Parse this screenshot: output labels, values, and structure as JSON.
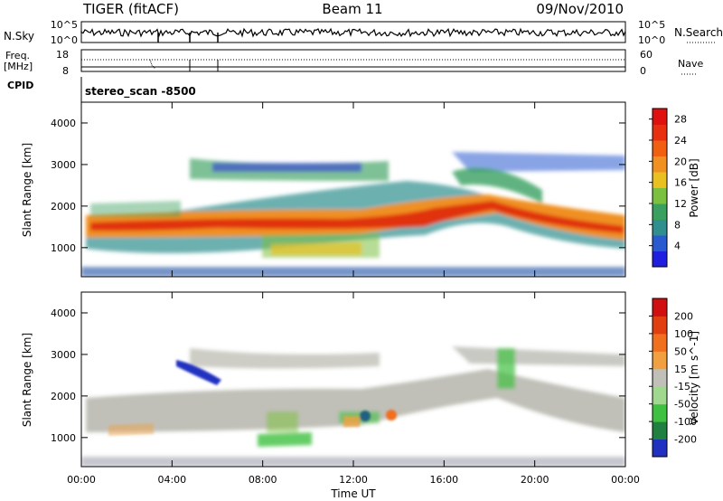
{
  "header": {
    "radar": "TIGER (fitACF)",
    "beam": "Beam 11",
    "date": "09/Nov/2010"
  },
  "panels": {
    "nsky_label": "N.Sky",
    "nsky_ticks": [
      "10^5",
      "10^0"
    ],
    "nsearch_label": "N.Search",
    "nsearch_ticks": [
      "10^5",
      "10^0"
    ],
    "freq_label_line1": "Freq.",
    "freq_label_line2": "[MHz]",
    "freq_ticks": [
      "18",
      "8"
    ],
    "nave_label": "Nave",
    "nave_ticks": [
      "60",
      "0"
    ],
    "cpid_label": "CPID",
    "cpid_text": "stereo_scan -8500"
  },
  "colors": {
    "power_scale": [
      "#1f1fe0",
      "#2a5ad0",
      "#2f8f8f",
      "#3aa060",
      "#7cc040",
      "#e8c020",
      "#f09020",
      "#f06010",
      "#e83010",
      "#e01010"
    ],
    "velocity_scale": [
      "#2030c0",
      "#208040",
      "#40c040",
      "#a0d890",
      "#c0c0b8",
      "#f0a040",
      "#f07020",
      "#e04010",
      "#d01010"
    ]
  },
  "chart_data": [
    {
      "type": "heatmap",
      "title": "Power",
      "ylabel": "Slant Range [km]",
      "yticks": [
        "4000",
        "3000",
        "2000",
        "1000"
      ],
      "ylim": [
        300,
        4500
      ],
      "colorbar_label": "Power [dB]",
      "colorbar_ticks": [
        "28",
        "24",
        "20",
        "16",
        "12",
        "8",
        "4"
      ],
      "colorbar_range": [
        0,
        30
      ]
    },
    {
      "type": "heatmap",
      "title": "Velocity",
      "ylabel": "Slant Range [km]",
      "yticks": [
        "4000",
        "3000",
        "2000",
        "1000"
      ],
      "ylim": [
        300,
        4500
      ],
      "xlabel": "Time UT",
      "xticks": [
        "00:00",
        "04:00",
        "08:00",
        "12:00",
        "16:00",
        "20:00",
        "00:00"
      ],
      "xlim": [
        0,
        24
      ],
      "colorbar_label": "Velocity [m s^-1]",
      "colorbar_ticks": [
        "200",
        "100",
        "50",
        "15",
        "-15",
        "-50",
        "-100",
        "-200"
      ],
      "colorbar_range": [
        -250,
        250
      ]
    }
  ]
}
